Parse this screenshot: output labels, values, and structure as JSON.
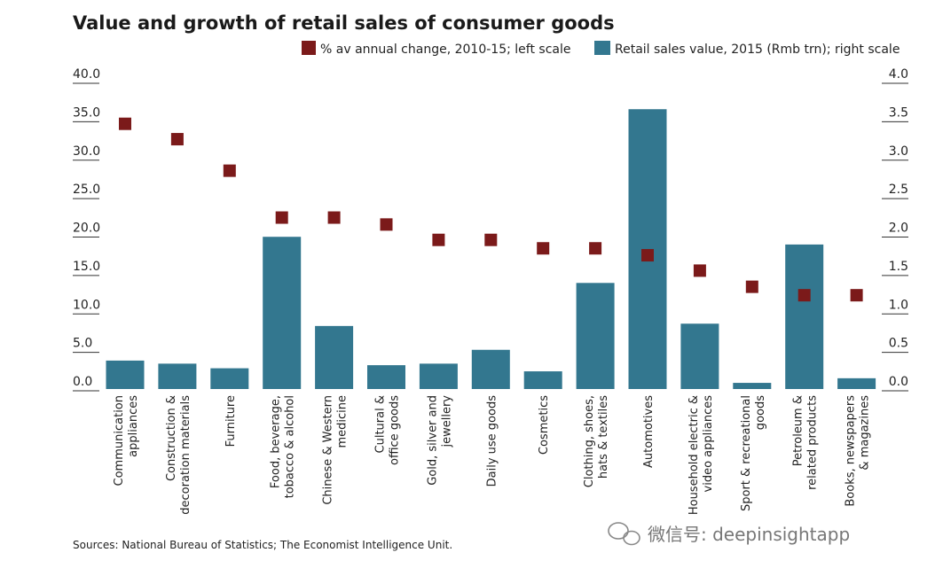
{
  "chart_data": {
    "type": "bar+scatter",
    "title": "Value and growth of retail sales of consumer goods",
    "categories": [
      [
        "Communication",
        "appliances"
      ],
      [
        "Construction &",
        "decoration materials"
      ],
      [
        "Furniture"
      ],
      [
        "Food, beverage,",
        "tobacco & alcohol"
      ],
      [
        "Chinese & Western",
        "medicine"
      ],
      [
        "Cultural &",
        "office goods"
      ],
      [
        "Gold, silver and",
        "jewellery"
      ],
      [
        "Daily use goods"
      ],
      [
        "Cosmetics"
      ],
      [
        "Clothing, shoes,",
        "hats & textiles"
      ],
      [
        "Automotives"
      ],
      [
        "Household electric &",
        "video appliances"
      ],
      [
        "Sport & recreational",
        "goods"
      ],
      [
        "Petroleum &",
        "related products"
      ],
      [
        "Books, newspapers",
        "& magazines"
      ]
    ],
    "series": [
      {
        "name": "% av annual change, 2010-15; left scale",
        "type": "scatter",
        "axis": "left",
        "color": "#7b1a1a",
        "values": [
          34.5,
          32.5,
          28.4,
          22.3,
          22.3,
          21.4,
          19.4,
          19.4,
          18.3,
          18.3,
          17.4,
          15.4,
          13.3,
          12.2,
          12.2
        ]
      },
      {
        "name": "Retail sales value, 2015 (Rmb trn); right scale",
        "type": "bar",
        "axis": "right",
        "color": "#33778f",
        "values": [
          0.37,
          0.33,
          0.27,
          1.98,
          0.82,
          0.31,
          0.33,
          0.51,
          0.23,
          1.38,
          3.64,
          0.85,
          0.08,
          1.88,
          0.14
        ]
      }
    ],
    "left_axis": {
      "ylim": [
        0,
        40
      ],
      "ticks": [
        "0.0",
        "5.0",
        "10.0",
        "15.0",
        "20.0",
        "25.0",
        "30.0",
        "35.0",
        "40.0"
      ]
    },
    "right_axis": {
      "ylim": [
        0,
        4
      ],
      "ticks": [
        "0.0",
        "0.5",
        "1.0",
        "1.5",
        "2.0",
        "2.5",
        "3.0",
        "3.5",
        "4.0"
      ]
    },
    "legend_placement": "top-right",
    "grid": false,
    "source": "Sources: National Bureau of Statistics; The Economist Intelligence Unit."
  },
  "watermark": "微信号: deepinsightapp"
}
